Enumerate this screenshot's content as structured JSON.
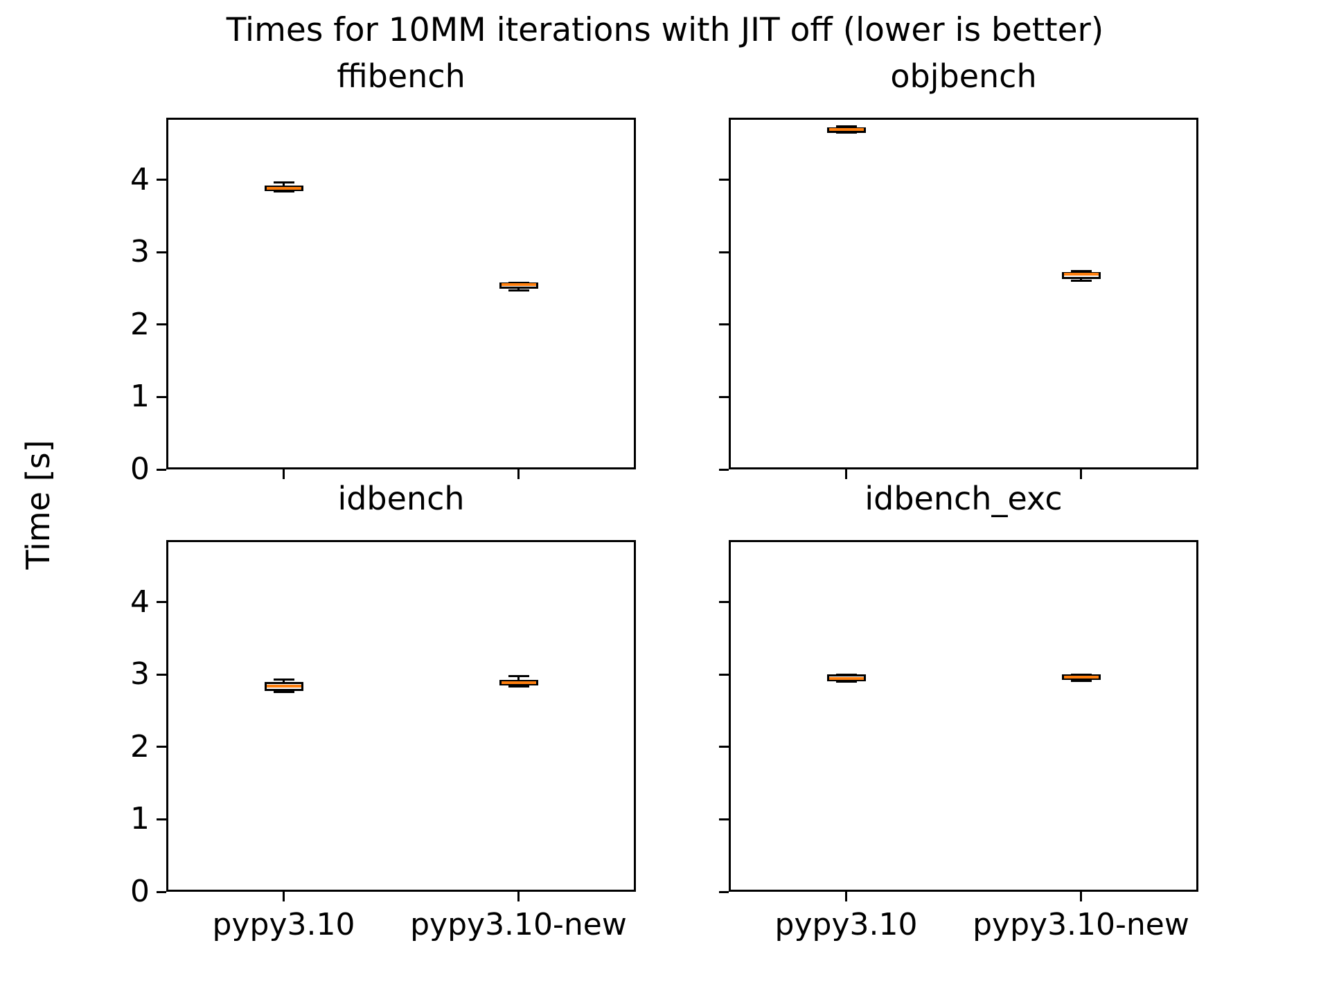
{
  "figure": {
    "suptitle": "Times for 10MM iterations with JIT off (lower is better)",
    "ylabel": "Time [s]",
    "background_color": "#ffffff",
    "line_color": "#000000",
    "median_color": "#ff7f0e"
  },
  "chart_data": {
    "type": "boxplot",
    "layout": "2x2 grid of subplots, shared axes",
    "title": "Times for 10MM iterations with JIT off (lower is better)",
    "ylabel": "Time [s]",
    "categories": [
      "pypy3.10",
      "pypy3.10-new"
    ],
    "yticks": [
      0,
      1,
      2,
      3,
      4
    ],
    "ylim": [
      0,
      4.86
    ],
    "grid": false,
    "legend": "none",
    "subplots": [
      {
        "title": "ffibench",
        "row": 0,
        "col": 0,
        "boxes": [
          {
            "category": "pypy3.10",
            "whislo": 3.84,
            "q1": 3.85,
            "med": 3.88,
            "q3": 3.92,
            "whishi": 3.97
          },
          {
            "category": "pypy3.10-new",
            "whislo": 2.47,
            "q1": 2.5,
            "med": 2.55,
            "q3": 2.58,
            "whishi": 2.58
          }
        ]
      },
      {
        "title": "objbench",
        "row": 0,
        "col": 1,
        "boxes": [
          {
            "category": "pypy3.10",
            "whislo": 4.65,
            "q1": 4.66,
            "med": 4.7,
            "q3": 4.73,
            "whishi": 4.74
          },
          {
            "category": "pypy3.10-new",
            "whislo": 2.61,
            "q1": 2.63,
            "med": 2.7,
            "q3": 2.73,
            "whishi": 2.74
          }
        ]
      },
      {
        "title": "idbench",
        "row": 1,
        "col": 0,
        "boxes": [
          {
            "category": "pypy3.10",
            "whislo": 2.76,
            "q1": 2.77,
            "med": 2.84,
            "q3": 2.9,
            "whishi": 2.93
          },
          {
            "category": "pypy3.10-new",
            "whislo": 2.84,
            "q1": 2.85,
            "med": 2.89,
            "q3": 2.93,
            "whishi": 2.98
          }
        ]
      },
      {
        "title": "idbench_exc",
        "row": 1,
        "col": 1,
        "boxes": [
          {
            "category": "pypy3.10",
            "whislo": 2.9,
            "q1": 2.91,
            "med": 2.95,
            "q3": 3.0,
            "whishi": 3.0
          },
          {
            "category": "pypy3.10-new",
            "whislo": 2.91,
            "q1": 2.93,
            "med": 2.97,
            "q3": 3.0,
            "whishi": 3.0
          }
        ]
      }
    ]
  }
}
